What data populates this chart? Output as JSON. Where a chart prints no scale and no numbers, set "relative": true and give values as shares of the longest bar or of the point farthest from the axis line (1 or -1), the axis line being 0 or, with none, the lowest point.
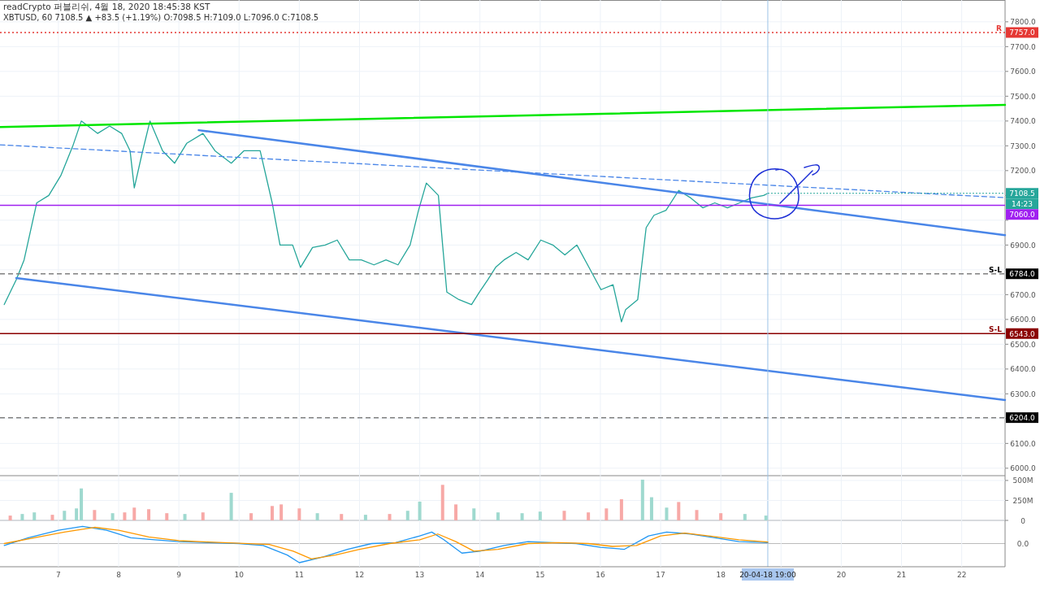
{
  "chart_data": [
    {
      "type": "line",
      "title": "readCrypto 퍼블리쉬, 4월 18, 2020 18:45:38 KST",
      "subtitle": "XBTUSD, 60 7108.5 ▲ +83.5 (+1.19%) O:7098.5 H:7109.0 L:7096.0 C:7108.5",
      "xlim": [
        6.03,
        22.72
      ],
      "ylim": [
        5970,
        7888
      ],
      "xticks": [
        7,
        8,
        9,
        10,
        11,
        12,
        13,
        14,
        15,
        16,
        17,
        18,
        19,
        20,
        21,
        22
      ],
      "yticks": [
        {
          "value": 6000,
          "label": "6000.0"
        },
        {
          "value": 6100,
          "label": "6100.0"
        },
        {
          "value": 6200,
          "label": null
        },
        {
          "value": 6300,
          "label": "6300.0"
        },
        {
          "value": 6400,
          "label": "6400.0"
        },
        {
          "value": 6500,
          "label": "6500.0"
        },
        {
          "value": 6600,
          "label": "6600.0"
        },
        {
          "value": 6700,
          "label": "6700.0"
        },
        {
          "value": 6800,
          "label": null
        },
        {
          "value": 6900,
          "label": "6900.0"
        },
        {
          "value": 7000,
          "label": null
        },
        {
          "value": 7100,
          "label": null
        },
        {
          "value": 7200,
          "label": "7200.0"
        },
        {
          "value": 7300,
          "label": "7300.0"
        },
        {
          "value": 7400,
          "label": "7400.0"
        },
        {
          "value": 7500,
          "label": "7500.0"
        },
        {
          "value": 7600,
          "label": "7600.0"
        },
        {
          "value": 7700,
          "label": "7700.0"
        },
        {
          "value": 7800,
          "label": "7800.0"
        }
      ],
      "tick_labels": "y",
      "grid": true,
      "series": [
        {
          "color": "#26a69a",
          "x": [
            6.1,
            6.3,
            6.43,
            6.64,
            6.84,
            7.04,
            7.24,
            7.38,
            7.65,
            7.85,
            8.05,
            8.19,
            8.26,
            8.39,
            8.52,
            8.73,
            8.93,
            9.13,
            9.4,
            9.6,
            9.87,
            10.08,
            10.35,
            10.55,
            10.68,
            10.89,
            11.02,
            11.22,
            11.43,
            11.63,
            11.83,
            12.03,
            12.24,
            12.44,
            12.64,
            12.84,
            12.98,
            13.11,
            13.31,
            13.38,
            13.45,
            13.65,
            13.86,
            13.99,
            14.13,
            14.26,
            14.4,
            14.6,
            14.8,
            15.01,
            15.21,
            15.41,
            15.61,
            15.81,
            16.01,
            16.21,
            16.35,
            16.42,
            16.62,
            16.76,
            16.89,
            17.09,
            17.3,
            17.5,
            17.7,
            17.9,
            18.11,
            18.31,
            18.51,
            18.71,
            18.78
          ],
          "values": [
            6660,
            6760,
            6840,
            7070,
            7100,
            7180,
            7300,
            7400,
            7350,
            7380,
            7350,
            7280,
            7130,
            7270,
            7400,
            7280,
            7230,
            7310,
            7350,
            7280,
            7230,
            7280,
            7280,
            7070,
            6900,
            6900,
            6810,
            6890,
            6900,
            6920,
            6840,
            6840,
            6820,
            6840,
            6820,
            6900,
            7040,
            7150,
            7100,
            6900,
            6710,
            6680,
            6660,
            6710,
            6760,
            6810,
            6840,
            6870,
            6840,
            6920,
            6900,
            6860,
            6900,
            6810,
            6720,
            6740,
            6590,
            6640,
            6680,
            6970,
            7020,
            7040,
            7120,
            7090,
            7050,
            7070,
            7050,
            7070,
            7090,
            7100,
            7108.5
          ]
        },
        {
          "color": "#00e600",
          "x": [
            6.03,
            22.72
          ],
          "values": [
            7376,
            7465
          ]
        },
        {
          "color": "#4a86e8",
          "x": [
            9.33,
            22.72
          ],
          "values": [
            7363,
            6940
          ]
        },
        {
          "color": "#4a86e8",
          "x": [
            6.3,
            22.72
          ],
          "values": [
            6767,
            6275
          ]
        },
        {
          "color": "#4a86e8",
          "line_style": "dashed",
          "x": [
            6.03,
            22.72
          ],
          "values": [
            7304,
            7091
          ]
        }
      ],
      "ref_lines": [
        {
          "axis": "y",
          "value": 7757,
          "label": "R",
          "color": "#e53935",
          "line_style": "dotted"
        },
        {
          "axis": "y",
          "value": 7060,
          "color": "#a020f0",
          "line_style": "solid"
        },
        {
          "axis": "y",
          "value": 6784,
          "label": "S-L",
          "color": "#808080",
          "line_style": "dashed"
        },
        {
          "axis": "y",
          "value": 6543,
          "label": "S-L",
          "color": "#8b0000",
          "line_style": "solid"
        },
        {
          "axis": "y",
          "value": 6204,
          "color": "#808080",
          "line_style": "dashed"
        },
        {
          "axis": "x",
          "value": 18.78,
          "label": "20-04-18  19:00",
          "color": "#9cc3e6",
          "line_style": "solid"
        }
      ],
      "annotations": [
        {
          "text": "7108.5",
          "x": 18.78,
          "y": 7108.5
        },
        "14:23",
        "7060.0",
        {
          "text": "7757.0",
          "y": 7757
        },
        {
          "text": "6784.0",
          "y": 6784
        },
        {
          "text": "6543.0",
          "y": 6543
        },
        {
          "text": "6204.0",
          "y": 6204
        }
      ]
    },
    {
      "type": "bar",
      "xlim": [
        6.03,
        22.72
      ],
      "ylim": [
        0,
        560
      ],
      "xticks": [
        7,
        8,
        9,
        10,
        11,
        12,
        13,
        14,
        15,
        16,
        17,
        18,
        19,
        20,
        21,
        22
      ],
      "yticks": [
        {
          "value": 0,
          "label": "0"
        },
        {
          "value": 250,
          "label": "250M"
        },
        {
          "value": 500,
          "label": "500M"
        }
      ],
      "tick_labels": "y",
      "grid": true,
      "x": [
        6.2,
        6.4,
        6.6,
        6.9,
        7.1,
        7.3,
        7.38,
        7.6,
        7.9,
        8.1,
        8.26,
        8.5,
        8.8,
        9.1,
        9.4,
        9.87,
        10.2,
        10.55,
        10.7,
        11.0,
        11.3,
        11.7,
        12.1,
        12.5,
        12.8,
        13.0,
        13.38,
        13.6,
        13.9,
        14.3,
        14.7,
        15.0,
        15.4,
        15.8,
        16.1,
        16.35,
        16.7,
        16.85,
        17.1,
        17.3,
        17.6,
        18.0,
        18.4,
        18.75
      ],
      "values": [
        60,
        80,
        100,
        70,
        120,
        150,
        400,
        130,
        90,
        100,
        160,
        140,
        90,
        80,
        100,
        345,
        90,
        180,
        200,
        150,
        90,
        80,
        70,
        80,
        120,
        235,
        445,
        200,
        150,
        100,
        90,
        110,
        120,
        100,
        150,
        265,
        510,
        290,
        160,
        230,
        130,
        90,
        80,
        60
      ],
      "colors": [
        "#f7a9a7",
        "#9fd9cf",
        "#9fd9cf",
        "#f7a9a7",
        "#9fd9cf",
        "#9fd9cf",
        "#9fd9cf",
        "#f7a9a7",
        "#9fd9cf",
        "#f7a9a7",
        "#f7a9a7",
        "#f7a9a7",
        "#f7a9a7",
        "#9fd9cf",
        "#f7a9a7",
        "#9fd9cf",
        "#f7a9a7",
        "#f7a9a7",
        "#f7a9a7",
        "#f7a9a7",
        "#9fd9cf",
        "#f7a9a7",
        "#9fd9cf",
        "#f7a9a7",
        "#9fd9cf",
        "#9fd9cf",
        "#f7a9a7",
        "#f7a9a7",
        "#9fd9cf",
        "#9fd9cf",
        "#9fd9cf",
        "#9fd9cf",
        "#f7a9a7",
        "#f7a9a7",
        "#f7a9a7",
        "#f7a9a7",
        "#9fd9cf",
        "#9fd9cf",
        "#9fd9cf",
        "#f7a9a7",
        "#f7a9a7",
        "#f7a9a7",
        "#9fd9cf",
        "#9fd9cf"
      ]
    },
    {
      "type": "line",
      "relative": true,
      "xlim": [
        6.03,
        22.72
      ],
      "grid": "x",
      "xticks": [
        7,
        8,
        9,
        10,
        11,
        12,
        13,
        14,
        15,
        16,
        17,
        18,
        {
          "value": 19,
          "label": null
        },
        20,
        21,
        22
      ],
      "series": [
        {
          "color": "#2196f3",
          "x": [
            6.1,
            6.5,
            7.0,
            7.4,
            7.8,
            8.2,
            8.6,
            9.0,
            9.5,
            10.0,
            10.4,
            10.8,
            11.0,
            11.4,
            11.8,
            12.2,
            12.6,
            13.0,
            13.2,
            13.4,
            13.7,
            14.0,
            14.4,
            14.8,
            15.2,
            15.6,
            16.0,
            16.4,
            16.8,
            17.1,
            17.5,
            17.9,
            18.3,
            18.78
          ],
          "values": [
            -0.1,
            0.3,
            0.7,
            0.9,
            0.7,
            0.3,
            0.2,
            0.1,
            0.05,
            0,
            -0.1,
            -0.6,
            -1,
            -0.7,
            -0.3,
            0,
            0.05,
            0.4,
            0.6,
            0.2,
            -0.5,
            -0.4,
            -0.1,
            0.1,
            0.05,
            0,
            -0.2,
            -0.3,
            0.4,
            0.6,
            0.5,
            0.3,
            0.1,
            0.05
          ]
        },
        {
          "color": "#ff9800",
          "x": [
            6.1,
            6.6,
            7.1,
            7.6,
            8.0,
            8.5,
            9.0,
            9.5,
            10.0,
            10.5,
            10.9,
            11.2,
            11.6,
            12.0,
            12.5,
            13.0,
            13.3,
            13.6,
            13.9,
            14.3,
            14.8,
            15.3,
            15.8,
            16.2,
            16.6,
            17.0,
            17.4,
            17.8,
            18.3,
            18.78
          ],
          "values": [
            0,
            0.3,
            0.6,
            0.85,
            0.7,
            0.35,
            0.15,
            0.08,
            0.02,
            -0.05,
            -0.4,
            -0.8,
            -0.6,
            -0.3,
            0,
            0.2,
            0.5,
            0.1,
            -0.4,
            -0.3,
            0,
            0.05,
            0,
            -0.15,
            -0.1,
            0.4,
            0.55,
            0.4,
            0.2,
            0.08
          ]
        }
      ],
      "annotations": [
        "0.0"
      ]
    }
  ]
}
